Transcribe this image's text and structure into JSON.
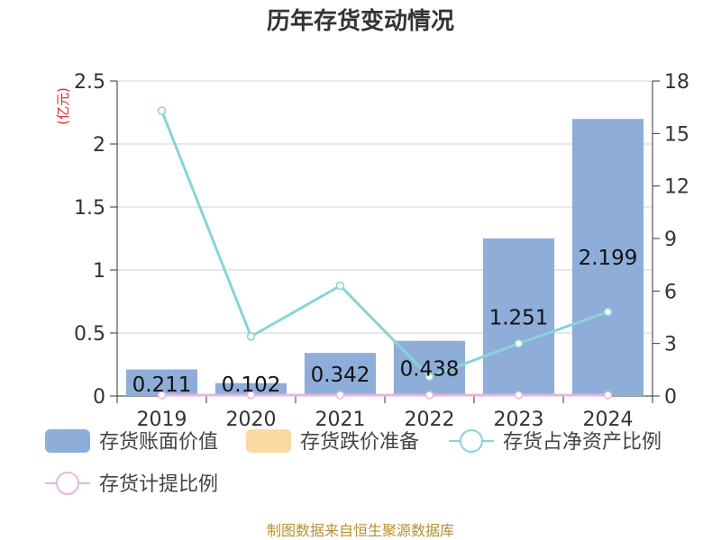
{
  "title": "历年存货变动情况",
  "left_axis_unit": "(亿元)",
  "source": "制图数据来自恒生聚源数据库",
  "colors": {
    "bar": "#8eadd9",
    "reserve": "#fcd9a1",
    "ratio": "#88d4d8",
    "provision": "#e6b6dc",
    "unit": "#e0262a"
  },
  "chart_data": {
    "type": "bar",
    "categories": [
      "2019",
      "2020",
      "2021",
      "2022",
      "2023",
      "2024"
    ],
    "series": [
      {
        "name": "存货账面价值",
        "type": "bar",
        "axis": "left",
        "values": [
          0.211,
          0.102,
          0.342,
          0.438,
          1.251,
          2.199
        ]
      },
      {
        "name": "存货跌价准备",
        "type": "bar",
        "axis": "left",
        "values": [
          0,
          0,
          0,
          0,
          0,
          0
        ]
      },
      {
        "name": "存货占净资产比例",
        "type": "line",
        "axis": "right",
        "values": [
          16.3,
          3.4,
          6.3,
          1.1,
          3.0,
          4.8
        ]
      },
      {
        "name": "存货计提比例",
        "type": "line",
        "axis": "right",
        "values": [
          0,
          0,
          0,
          0,
          0,
          0
        ]
      }
    ],
    "bar_labels": [
      "0.211",
      "0.102",
      "0.342",
      "0.438",
      "1.251",
      "2.199"
    ],
    "left_axis": {
      "min": 0,
      "max": 2.5,
      "ticks": [
        "0",
        "0.5",
        "1",
        "1.5",
        "2",
        "2.5"
      ]
    },
    "right_axis": {
      "min": 0,
      "max": 18,
      "ticks": [
        "0",
        "3",
        "6",
        "9",
        "12",
        "15",
        "18"
      ]
    },
    "grid": true,
    "legend_position": "bottom"
  }
}
